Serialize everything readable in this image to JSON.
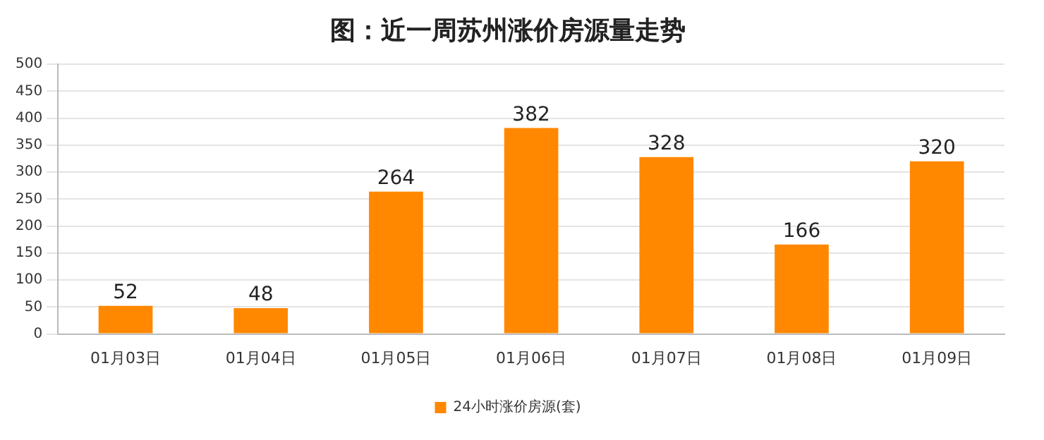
{
  "chart_data": {
    "type": "bar",
    "title": "图：近一周苏州涨价房源量走势",
    "categories": [
      "01月03日",
      "01月04日",
      "01月05日",
      "01月06日",
      "01月07日",
      "01月08日",
      "01月09日"
    ],
    "series": [
      {
        "name": "24小时涨价房源(套)",
        "color": "#ff8800",
        "values": [
          52,
          48,
          264,
          382,
          328,
          166,
          320
        ]
      }
    ],
    "ylim": [
      0,
      500
    ],
    "yticks": [
      0,
      50,
      100,
      150,
      200,
      250,
      300,
      350,
      400,
      450,
      500
    ],
    "grid": "y",
    "legend": "bottom",
    "data_labels": true
  }
}
